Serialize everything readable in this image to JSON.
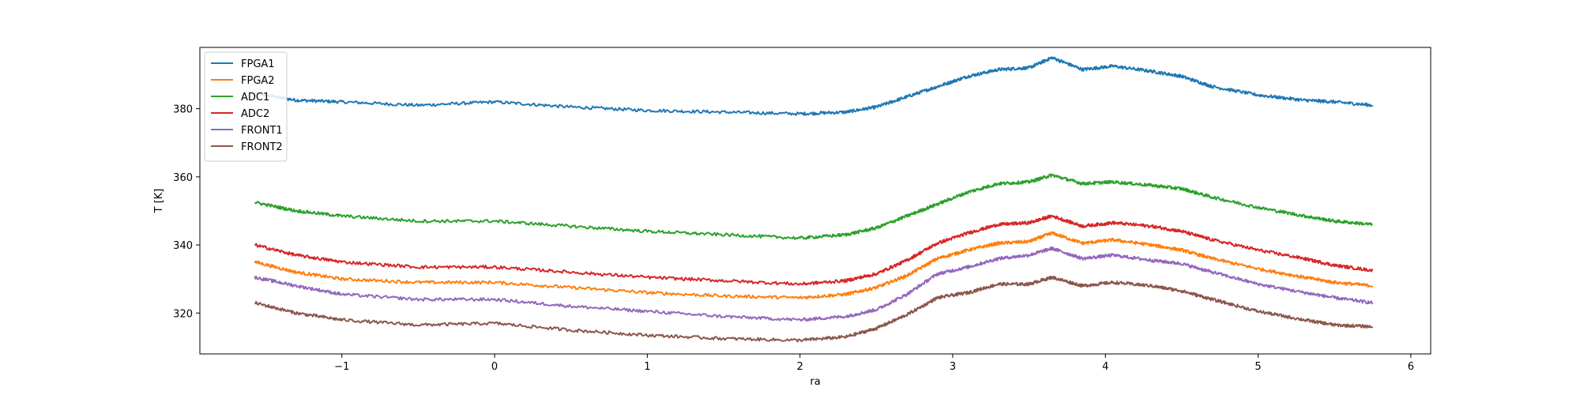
{
  "chart_data": {
    "type": "line",
    "title": "",
    "xlabel": "ra",
    "ylabel": "T [K]",
    "xlim": [
      -1.93,
      6.13
    ],
    "ylim": [
      308,
      398
    ],
    "xticks": [
      -1,
      0,
      1,
      2,
      3,
      4,
      5,
      6
    ],
    "yticks": [
      320,
      340,
      360,
      380
    ],
    "grid": false,
    "legend_position": "top-left",
    "series": [
      {
        "name": "FPGA1",
        "color": "#1f77b4",
        "points": [
          [
            -1.57,
            384.5
          ],
          [
            -1.3,
            382.5
          ],
          [
            -1,
            382
          ],
          [
            -0.5,
            381
          ],
          [
            0,
            382
          ],
          [
            0.5,
            380.5
          ],
          [
            1,
            379.5
          ],
          [
            1.5,
            379
          ],
          [
            2,
            378.5
          ],
          [
            2.3,
            379
          ],
          [
            2.5,
            380.5
          ],
          [
            2.7,
            383.5
          ],
          [
            2.9,
            386.5
          ],
          [
            3.1,
            389.5
          ],
          [
            3.3,
            391.5
          ],
          [
            3.5,
            392
          ],
          [
            3.65,
            395
          ],
          [
            3.85,
            391.5
          ],
          [
            4.05,
            392.5
          ],
          [
            4.3,
            391
          ],
          [
            4.5,
            389.5
          ],
          [
            4.7,
            386.5
          ],
          [
            5,
            384
          ],
          [
            5.3,
            382.5
          ],
          [
            5.5,
            382
          ],
          [
            5.75,
            381
          ]
        ]
      },
      {
        "name": "FPGA2",
        "color": "#ff7f0e",
        "points": [
          [
            -1.57,
            335
          ],
          [
            -1.3,
            332
          ],
          [
            -1,
            330
          ],
          [
            -0.5,
            329
          ],
          [
            0,
            329
          ],
          [
            0.5,
            327.5
          ],
          [
            1,
            326
          ],
          [
            1.5,
            325
          ],
          [
            2,
            324.5
          ],
          [
            2.3,
            325.5
          ],
          [
            2.5,
            327.5
          ],
          [
            2.7,
            331
          ],
          [
            2.9,
            336
          ],
          [
            3.1,
            338.5
          ],
          [
            3.3,
            340.5
          ],
          [
            3.5,
            341
          ],
          [
            3.65,
            343.5
          ],
          [
            3.85,
            340.5
          ],
          [
            4.05,
            341.5
          ],
          [
            4.3,
            340
          ],
          [
            4.5,
            338.5
          ],
          [
            4.7,
            336
          ],
          [
            5,
            333
          ],
          [
            5.3,
            330.5
          ],
          [
            5.5,
            329
          ],
          [
            5.75,
            328
          ]
        ]
      },
      {
        "name": "ADC1",
        "color": "#2ca02c",
        "points": [
          [
            -1.57,
            352.5
          ],
          [
            -1.3,
            350
          ],
          [
            -1,
            348.5
          ],
          [
            -0.5,
            347
          ],
          [
            0,
            347
          ],
          [
            0.5,
            345.5
          ],
          [
            1,
            344
          ],
          [
            1.5,
            343
          ],
          [
            2,
            342
          ],
          [
            2.3,
            343
          ],
          [
            2.5,
            345
          ],
          [
            2.7,
            348.5
          ],
          [
            2.9,
            352
          ],
          [
            3.1,
            355.5
          ],
          [
            3.3,
            358
          ],
          [
            3.5,
            358.5
          ],
          [
            3.65,
            360.5
          ],
          [
            3.85,
            358
          ],
          [
            4.05,
            358.5
          ],
          [
            4.3,
            357.5
          ],
          [
            4.5,
            356.5
          ],
          [
            4.7,
            354
          ],
          [
            5,
            351
          ],
          [
            5.3,
            348.5
          ],
          [
            5.5,
            347
          ],
          [
            5.75,
            346
          ]
        ]
      },
      {
        "name": "ADC2",
        "color": "#d62728",
        "points": [
          [
            -1.57,
            340
          ],
          [
            -1.3,
            337
          ],
          [
            -1,
            335
          ],
          [
            -0.5,
            333.5
          ],
          [
            0,
            333.5
          ],
          [
            0.5,
            332
          ],
          [
            1,
            330.5
          ],
          [
            1.5,
            329.5
          ],
          [
            2,
            328.5
          ],
          [
            2.3,
            329.5
          ],
          [
            2.5,
            331.5
          ],
          [
            2.7,
            335.5
          ],
          [
            2.9,
            340.5
          ],
          [
            3.1,
            343.5
          ],
          [
            3.3,
            346
          ],
          [
            3.5,
            346.5
          ],
          [
            3.65,
            348.5
          ],
          [
            3.85,
            345.5
          ],
          [
            4.05,
            346.5
          ],
          [
            4.3,
            345.5
          ],
          [
            4.5,
            344
          ],
          [
            4.7,
            341.5
          ],
          [
            5,
            338.5
          ],
          [
            5.3,
            336
          ],
          [
            5.5,
            334
          ],
          [
            5.75,
            332.5
          ]
        ]
      },
      {
        "name": "FRONT1",
        "color": "#9467bd",
        "points": [
          [
            -1.57,
            330.5
          ],
          [
            -1.3,
            328
          ],
          [
            -1,
            325.5
          ],
          [
            -0.5,
            324
          ],
          [
            0,
            324
          ],
          [
            0.5,
            322
          ],
          [
            1,
            320.5
          ],
          [
            1.5,
            319
          ],
          [
            2,
            318
          ],
          [
            2.3,
            319
          ],
          [
            2.5,
            321
          ],
          [
            2.7,
            325.5
          ],
          [
            2.9,
            331.5
          ],
          [
            3.1,
            333.5
          ],
          [
            3.3,
            336
          ],
          [
            3.5,
            337
          ],
          [
            3.65,
            339
          ],
          [
            3.85,
            336
          ],
          [
            4.05,
            337
          ],
          [
            4.3,
            335.5
          ],
          [
            4.5,
            334.5
          ],
          [
            4.7,
            332
          ],
          [
            5,
            328.5
          ],
          [
            5.3,
            326
          ],
          [
            5.5,
            324.5
          ],
          [
            5.75,
            323
          ]
        ]
      },
      {
        "name": "FRONT2",
        "color": "#8c564b",
        "points": [
          [
            -1.57,
            323
          ],
          [
            -1.3,
            320
          ],
          [
            -1,
            318
          ],
          [
            -0.5,
            316.5
          ],
          [
            0,
            317
          ],
          [
            0.5,
            315
          ],
          [
            1,
            313.5
          ],
          [
            1.5,
            312.5
          ],
          [
            2,
            312
          ],
          [
            2.3,
            313
          ],
          [
            2.5,
            315.5
          ],
          [
            2.7,
            319.5
          ],
          [
            2.9,
            324.5
          ],
          [
            3.1,
            326
          ],
          [
            3.3,
            328.5
          ],
          [
            3.5,
            328.5
          ],
          [
            3.65,
            330.5
          ],
          [
            3.85,
            328
          ],
          [
            4.05,
            329
          ],
          [
            4.3,
            328
          ],
          [
            4.5,
            326.5
          ],
          [
            4.7,
            324
          ],
          [
            5,
            320.5
          ],
          [
            5.3,
            318
          ],
          [
            5.5,
            316.5
          ],
          [
            5.75,
            316
          ]
        ]
      }
    ]
  }
}
